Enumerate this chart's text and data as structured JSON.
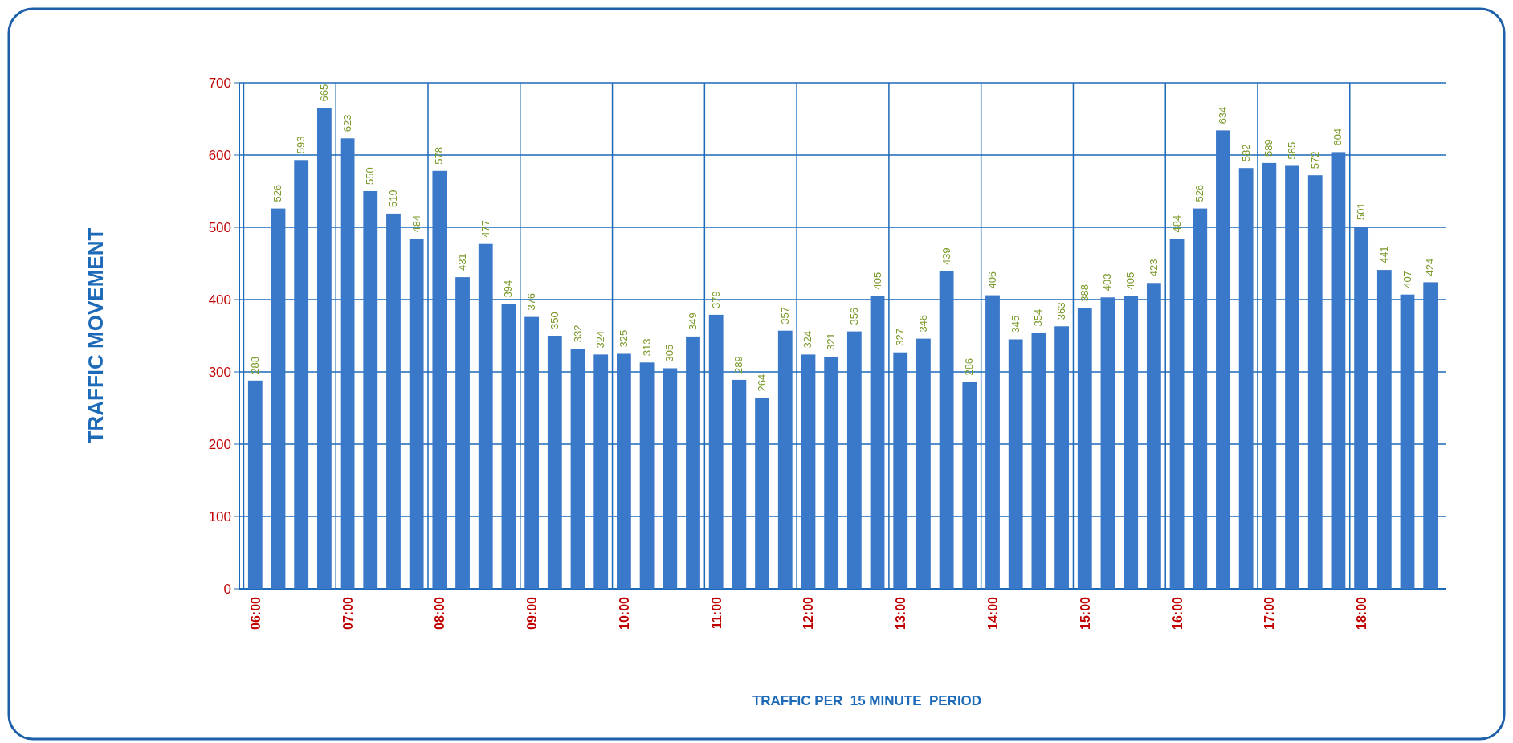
{
  "chart_data": {
    "type": "bar",
    "xlabel": "TRAFFIC PER  15 MINUTE  PERIOD",
    "ylabel": "TRAFFIC MOVEMENT",
    "categories": [
      "06:00",
      null,
      null,
      null,
      "07:00",
      null,
      null,
      null,
      "08:00",
      null,
      null,
      null,
      "09:00",
      null,
      null,
      null,
      "10:00",
      null,
      null,
      null,
      "11:00",
      null,
      null,
      null,
      "12:00",
      null,
      null,
      null,
      "13:00",
      null,
      null,
      null,
      "14:00",
      null,
      null,
      null,
      "15:00",
      null,
      null,
      null,
      "16:00",
      null,
      null,
      null,
      "17:00",
      null,
      null,
      null,
      "18:00",
      null,
      null,
      null
    ],
    "values": [
      288,
      526,
      593,
      665,
      623,
      550,
      519,
      484,
      578,
      431,
      477,
      394,
      376,
      350,
      332,
      324,
      325,
      313,
      305,
      349,
      379,
      289,
      264,
      357,
      324,
      321,
      356,
      405,
      327,
      346,
      439,
      286,
      406,
      345,
      354,
      363,
      388,
      403,
      405,
      423,
      484,
      526,
      634,
      582,
      589,
      585,
      572,
      604,
      501,
      441,
      407,
      424
    ],
    "color": "#3a78c9",
    "ylim": [
      0,
      700
    ],
    "yticks": [
      0,
      100,
      200,
      300,
      400,
      500,
      600,
      700
    ],
    "grid": true,
    "data_labels": true
  }
}
